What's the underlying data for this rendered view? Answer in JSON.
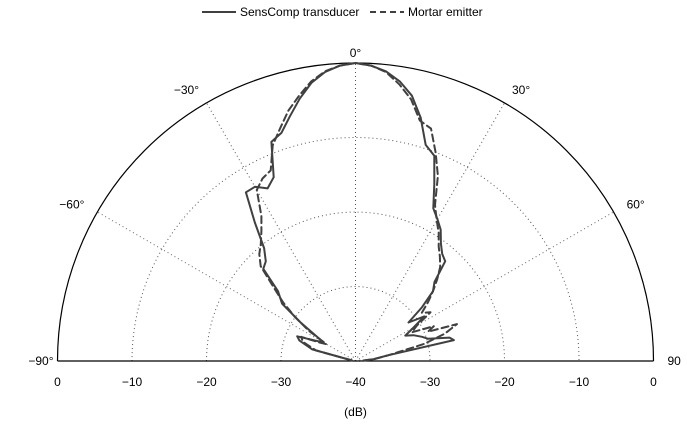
{
  "chart_data": {
    "type": "polar-line",
    "title": "",
    "xlabel": "(dB)",
    "radial_axis": {
      "range_db": [
        -40,
        0
      ],
      "ring_levels_db": [
        -40,
        -30,
        -20,
        -10,
        0
      ],
      "tick_labels": [
        "0",
        "−10",
        "−20",
        "−30",
        "−40",
        "−30",
        "−20",
        "−10",
        "0"
      ]
    },
    "angular_axis": {
      "range_deg": [
        -90,
        90
      ],
      "spokes_deg": [
        -90,
        -60,
        -30,
        0,
        30,
        60,
        90
      ],
      "tick_labels": [
        "−90°",
        "−60°",
        "−30°",
        "0°",
        "30°",
        "60°",
        "90"
      ]
    },
    "grid": true,
    "legend": {
      "position": "top-center",
      "entries": [
        {
          "label": "SensComp transducer",
          "style": "solid"
        },
        {
          "label": "Mortar emitter",
          "style": "dashed"
        }
      ]
    },
    "series": [
      {
        "name": "SensComp transducer",
        "style": "solid",
        "color": "#404040",
        "points_deg_db": [
          [
            -80,
            -39.5
          ],
          [
            -75,
            -34
          ],
          [
            -70,
            -32
          ],
          [
            -67,
            -31.5
          ],
          [
            -63,
            -34
          ],
          [
            -60,
            -35
          ],
          [
            -58,
            -34
          ],
          [
            -55,
            -31
          ],
          [
            -52,
            -27.5
          ],
          [
            -48,
            -26
          ],
          [
            -45,
            -22.5
          ],
          [
            -42,
            -22
          ],
          [
            -39,
            -20.5
          ],
          [
            -36,
            -17
          ],
          [
            -33,
            -13
          ],
          [
            -30,
            -13
          ],
          [
            -27,
            -14
          ],
          [
            -24,
            -13
          ],
          [
            -21,
            -8.5
          ],
          [
            -18,
            -7.8
          ],
          [
            -15,
            -6
          ],
          [
            -12,
            -4
          ],
          [
            -9,
            -2.2
          ],
          [
            -6,
            -1
          ],
          [
            -3,
            -0.3
          ],
          [
            0,
            0
          ],
          [
            3,
            -0.3
          ],
          [
            6,
            -0.9
          ],
          [
            9,
            -2
          ],
          [
            12,
            -3.6
          ],
          [
            15,
            -6.2
          ],
          [
            18,
            -9.5
          ],
          [
            21,
            -10.5
          ],
          [
            24,
            -14
          ],
          [
            27,
            -17
          ],
          [
            30,
            -18
          ],
          [
            33,
            -19
          ],
          [
            36,
            -20.5
          ],
          [
            39,
            -21.5
          ],
          [
            42,
            -22
          ],
          [
            45,
            -25
          ],
          [
            48,
            -26
          ],
          [
            51,
            -28.5
          ],
          [
            54,
            -31.2
          ],
          [
            57,
            -29
          ],
          [
            60,
            -31
          ],
          [
            63,
            -32.5
          ],
          [
            66,
            -31.5
          ],
          [
            70,
            -30.5
          ],
          [
            73,
            -29.8
          ],
          [
            76,
            -27
          ],
          [
            78,
            -26.5
          ],
          [
            80,
            -35.5
          ],
          [
            84,
            -37.5
          ],
          [
            88,
            -39
          ]
        ]
      },
      {
        "name": "Mortar emitter",
        "style": "dashed",
        "color": "#404040",
        "points_deg_db": [
          [
            -80,
            -39.5
          ],
          [
            -75,
            -34.5
          ],
          [
            -70,
            -32.5
          ],
          [
            -66,
            -32
          ],
          [
            -63,
            -34.5
          ],
          [
            -60,
            -35.5
          ],
          [
            -57,
            -32.5
          ],
          [
            -54,
            -30
          ],
          [
            -51,
            -27.5
          ],
          [
            -48,
            -25.2
          ],
          [
            -45,
            -22
          ],
          [
            -42,
            -20.7
          ],
          [
            -39,
            -19.8
          ],
          [
            -36,
            -18.5
          ],
          [
            -33,
            -16.8
          ],
          [
            -30,
            -13.5
          ],
          [
            -27,
            -12.5
          ],
          [
            -24,
            -12
          ],
          [
            -21,
            -9
          ],
          [
            -18,
            -7.2
          ],
          [
            -15,
            -5.2
          ],
          [
            -12,
            -3.6
          ],
          [
            -9,
            -2
          ],
          [
            -6,
            -0.9
          ],
          [
            -3,
            -0.3
          ],
          [
            0,
            0
          ],
          [
            3,
            -0.3
          ],
          [
            6,
            -1
          ],
          [
            9,
            -2.4
          ],
          [
            12,
            -4.1
          ],
          [
            15,
            -6.6
          ],
          [
            18,
            -7.2
          ],
          [
            21,
            -10
          ],
          [
            24,
            -12.8
          ],
          [
            27,
            -16.5
          ],
          [
            30,
            -18.2
          ],
          [
            33,
            -19.5
          ],
          [
            36,
            -21
          ],
          [
            39,
            -22
          ],
          [
            42,
            -23
          ],
          [
            45,
            -24.5
          ],
          [
            48,
            -26
          ],
          [
            51,
            -27.5
          ],
          [
            54,
            -29
          ],
          [
            57,
            -28
          ],
          [
            60,
            -30.5
          ],
          [
            63,
            -31.5
          ],
          [
            66,
            -28.5
          ],
          [
            68,
            -29.5
          ],
          [
            70,
            -25.5
          ],
          [
            73,
            -27.5
          ],
          [
            76,
            -30.5
          ],
          [
            80,
            -35.5
          ],
          [
            84,
            -37.5
          ],
          [
            88,
            -39.5
          ]
        ]
      }
    ]
  }
}
